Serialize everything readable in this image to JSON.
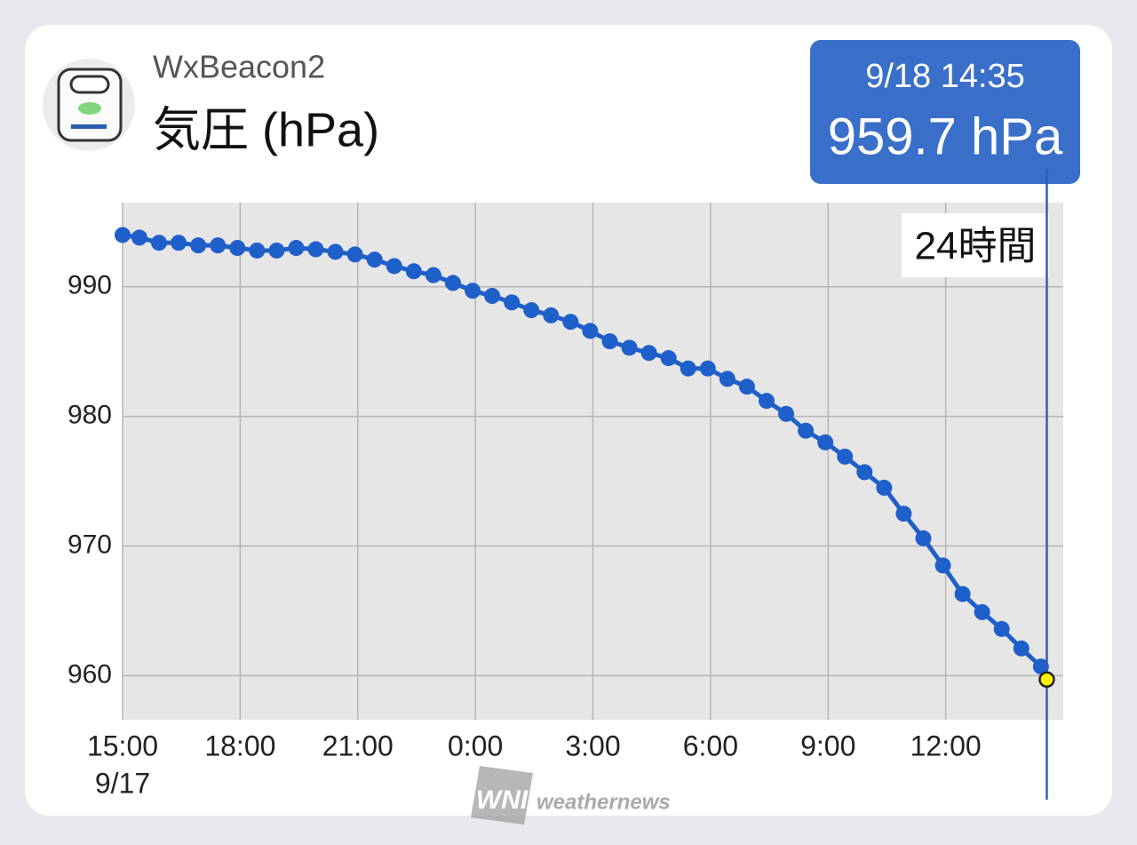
{
  "chart_data": {
    "type": "line",
    "subtitle": "WxBeacon2",
    "title": "気圧 (hPa)",
    "range_button": "24時間",
    "watermark": "weathernews",
    "logo": "WNI",
    "date_label": "9/17",
    "x": [
      0,
      0.43,
      0.93,
      1.43,
      1.93,
      2.43,
      2.93,
      3.43,
      3.93,
      4.43,
      4.93,
      5.43,
      5.93,
      6.43,
      6.93,
      7.43,
      7.93,
      8.43,
      8.93,
      9.43,
      9.93,
      10.43,
      10.93,
      11.43,
      11.93,
      12.43,
      12.93,
      13.43,
      13.93,
      14.43,
      14.93,
      15.43,
      15.93,
      16.43,
      16.93,
      17.43,
      17.93,
      18.43,
      18.93,
      19.43,
      19.93,
      20.43,
      20.93,
      21.43,
      21.93,
      22.43,
      22.93,
      23.43,
      23.58
    ],
    "series": [
      {
        "name": "気圧",
        "color": "#1f5fc9",
        "values": [
          994.0,
          993.8,
          993.4,
          993.4,
          993.2,
          993.2,
          993.0,
          992.8,
          992.8,
          993.0,
          992.9,
          992.7,
          992.5,
          992.1,
          991.6,
          991.2,
          990.9,
          990.3,
          989.7,
          989.3,
          988.8,
          988.2,
          987.8,
          987.3,
          986.6,
          985.8,
          985.3,
          984.9,
          984.5,
          983.7,
          983.7,
          982.9,
          982.3,
          981.2,
          980.2,
          978.9,
          978.0,
          976.9,
          975.7,
          974.5,
          972.5,
          970.6,
          968.5,
          966.3,
          964.9,
          963.6,
          962.1,
          960.7,
          959.7
        ]
      }
    ],
    "highlight": {
      "time_label": "9/18 14:35",
      "value_label": "959.7 hPa",
      "color": "#ffee00"
    },
    "xlim": [
      0,
      24
    ],
    "xticks": [
      {
        "value": 0,
        "label": "15:00"
      },
      {
        "value": 3,
        "label": "18:00"
      },
      {
        "value": 6,
        "label": "21:00"
      },
      {
        "value": 9,
        "label": "0:00"
      },
      {
        "value": 12,
        "label": "3:00"
      },
      {
        "value": 15,
        "label": "6:00"
      },
      {
        "value": 18,
        "label": "9:00"
      },
      {
        "value": 21,
        "label": "12:00"
      }
    ],
    "ylim": [
      956.6,
      996.5
    ],
    "yticks": [
      960,
      970,
      980,
      990
    ],
    "grid": true
  }
}
